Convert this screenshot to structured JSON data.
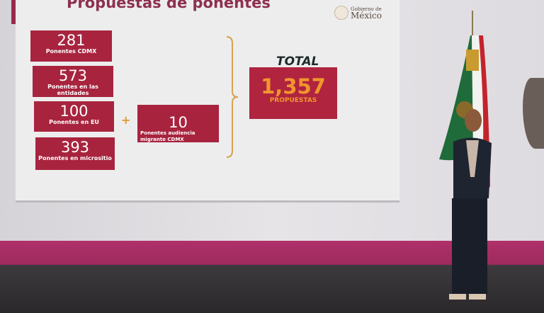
{
  "slide": {
    "title": "Propuestas de ponentes",
    "logo": {
      "line1": "Gobierno de",
      "line2": "México"
    },
    "items": [
      {
        "value": "281",
        "label": "Ponentes CDMX"
      },
      {
        "value": "573",
        "label": "Ponentes en las entidades"
      },
      {
        "value": "100",
        "label": "Ponentes en EU"
      },
      {
        "value": "393",
        "label": "Ponentes en micrositio"
      }
    ],
    "extra": {
      "value": "10",
      "label": "Ponentes  audiencia migrante CDMX"
    },
    "plus": "+",
    "total_heading": "TOTAL",
    "total": {
      "value": "1,357",
      "label": "PROPUESTAS"
    }
  },
  "colors": {
    "box": "#a8243e",
    "accent": "#e39b2c",
    "stripe": "#a82d63"
  }
}
